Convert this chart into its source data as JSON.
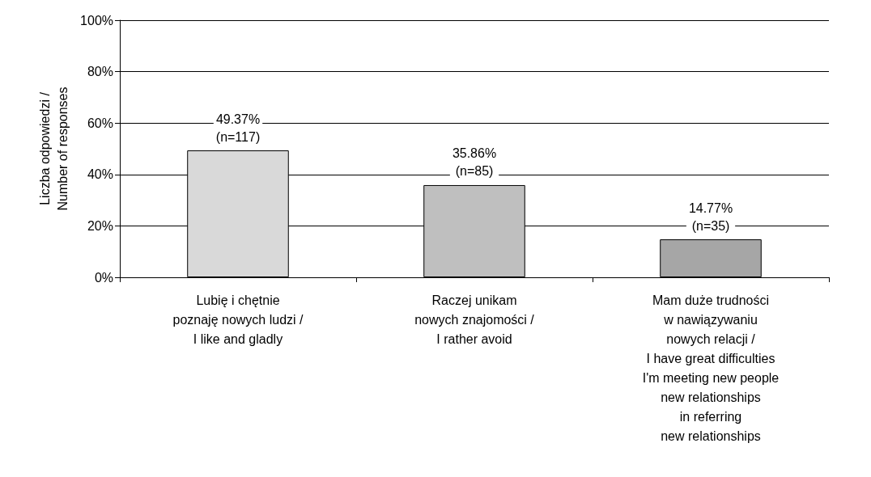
{
  "chart_data": {
    "type": "bar",
    "ylabel": "Liczba odpowiedzi /\nNumber of responses",
    "categories": [
      "Lubię i chętnie\npoznaję nowych ludzi /\nI like and gladly",
      "Raczej unikam\nnowych znajomości /\nI rather avoid",
      "Mam duże trudności\nw nawiązywaniu\nnowych relacji /\nI have great difficulties\nI'm meeting new people\nnew relationships\nin referring\nnew relationships"
    ],
    "values": [
      49.37,
      35.86,
      14.77
    ],
    "colors": [
      "#d9d9d9",
      "#bfbfbf",
      "#a6a6a6"
    ],
    "value_labels": [
      "49.37%\n(n=117)",
      "35.86%\n(n=85)",
      "14.77%\n(n=35)"
    ],
    "ylim": [
      0,
      100
    ],
    "yticks": [
      {
        "value": 0,
        "label": "0%"
      },
      {
        "value": 20,
        "label": "20%"
      },
      {
        "value": 40,
        "label": "40%"
      },
      {
        "value": 60,
        "label": "60%"
      },
      {
        "value": 80,
        "label": "80%"
      },
      {
        "value": 100,
        "label": "100%"
      }
    ],
    "grid": "y"
  }
}
